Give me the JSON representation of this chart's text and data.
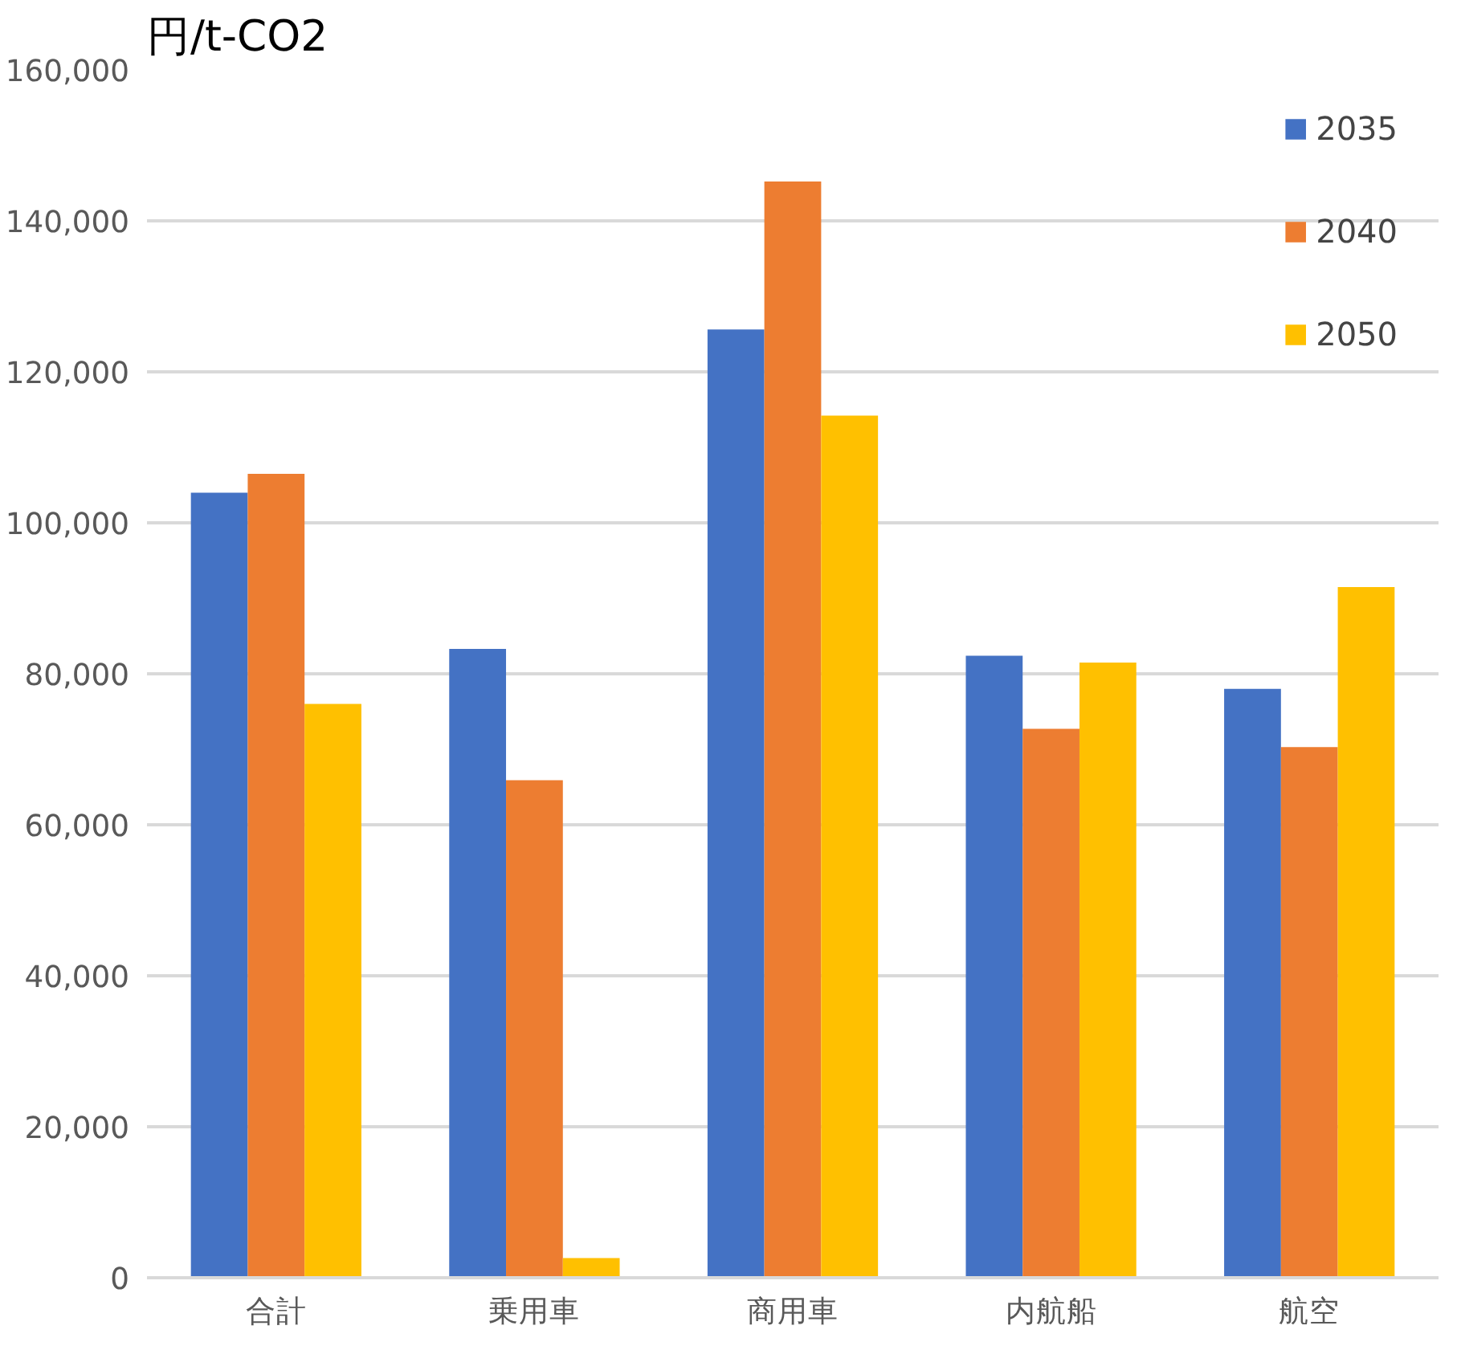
{
  "chart_data": {
    "type": "bar",
    "ylabel": "円/t-CO2",
    "categories": [
      "合計",
      "乗用車",
      "商用車",
      "内航船",
      "航空"
    ],
    "series": [
      {
        "name": "2035",
        "color": "#4472c4",
        "values": [
          104000,
          83300,
          125600,
          82400,
          78000
        ]
      },
      {
        "name": "2040",
        "color": "#ed7d31",
        "values": [
          106500,
          65900,
          145200,
          72700,
          70300
        ]
      },
      {
        "name": "2050",
        "color": "#ffc000",
        "values": [
          76000,
          2600,
          114200,
          81500,
          91500
        ]
      }
    ],
    "ylim": [
      0,
      160000
    ],
    "yticks": [
      {
        "value": 0,
        "label": "0"
      },
      {
        "value": 20000,
        "label": "20,000"
      },
      {
        "value": 40000,
        "label": "40,000"
      },
      {
        "value": 60000,
        "label": "60,000"
      },
      {
        "value": 80000,
        "label": "80,000"
      },
      {
        "value": 100000,
        "label": "100,000"
      },
      {
        "value": 120000,
        "label": "120,000"
      },
      {
        "value": 140000,
        "label": "140,000"
      },
      {
        "value": 160000,
        "label": "160,000"
      }
    ],
    "grid": "y",
    "legend": "top right"
  }
}
